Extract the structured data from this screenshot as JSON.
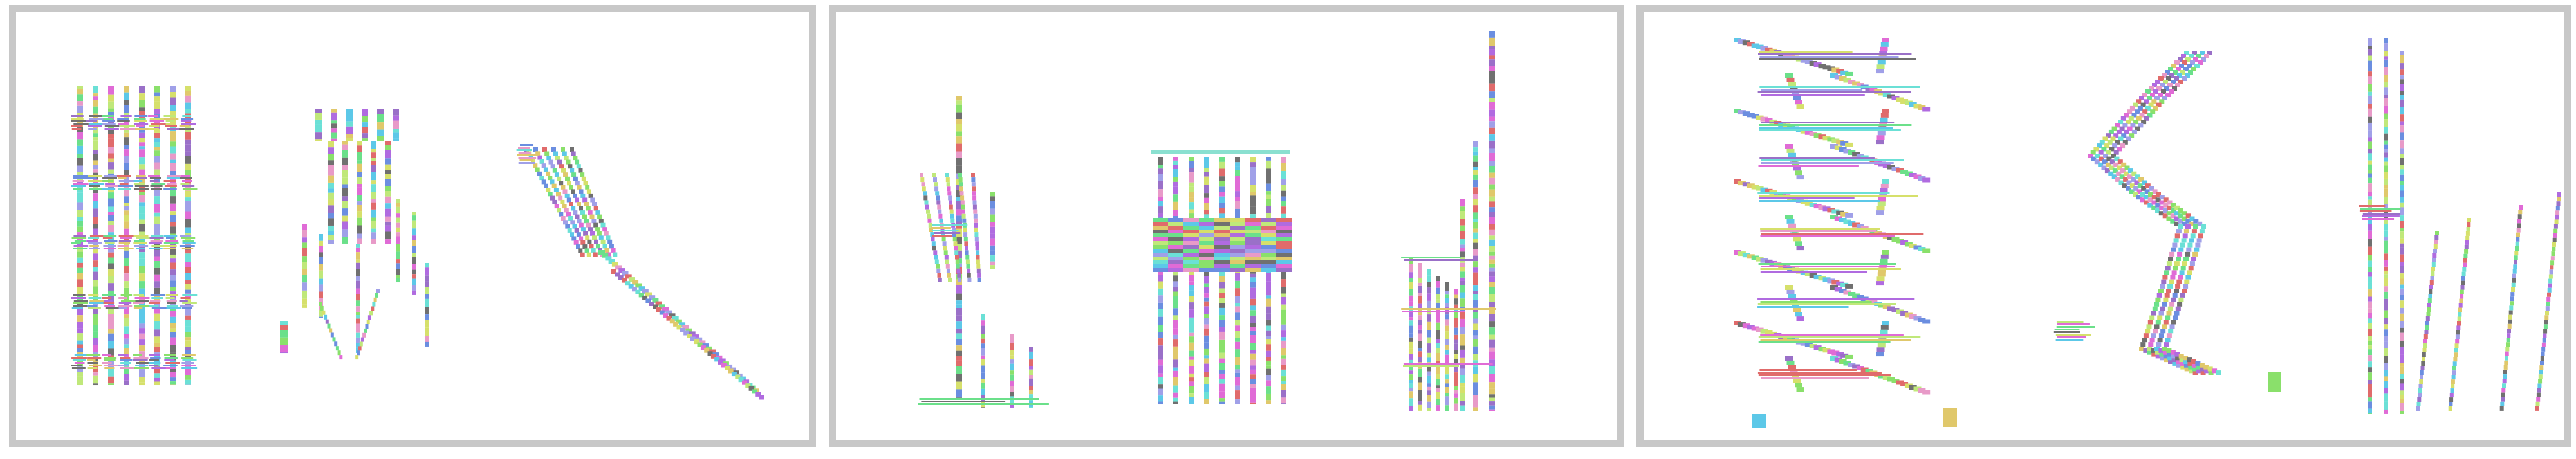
{
  "palette": [
    "#e06bd6",
    "#6b8ee0",
    "#8ae06b",
    "#e0c86b",
    "#6be0d6",
    "#b06be0",
    "#e06b6b",
    "#6be08a",
    "#a0a0e8",
    "#d6e06b",
    "#707070",
    "#e89ac8",
    "#5cc8e8",
    "#c0e87a",
    "#9a70c8"
  ],
  "frame_color": "#c8c8c8",
  "panels": [
    {
      "id": "panel-1",
      "figures": [
        "figure-dense-grid",
        "figure-branching-tree",
        "figure-diagonal-chain"
      ]
    },
    {
      "id": "panel-2",
      "figures": [
        "figure-pinnacle-tree",
        "figure-block-comb",
        "figure-tall-spire"
      ]
    },
    {
      "id": "panel-3",
      "figures": [
        "figure-zigzag-column",
        "figure-s-curve",
        "figure-slanted-strands"
      ]
    }
  ]
}
